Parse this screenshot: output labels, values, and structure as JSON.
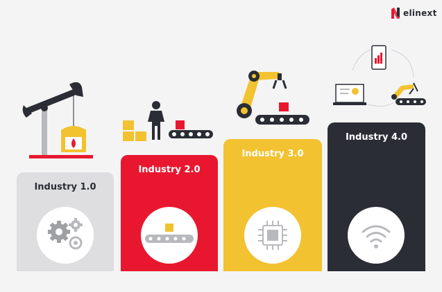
{
  "brand": {
    "name": "elinext",
    "accent": "#e8172f"
  },
  "columns": [
    {
      "label": "Industry 1.0",
      "bg": "#dedee0",
      "text": "#2b2d35",
      "icon": "gears-icon"
    },
    {
      "label": "Industry 2.0",
      "bg": "#e8172f",
      "text": "#ffffff",
      "icon": "conveyor-icon"
    },
    {
      "label": "Industry 3.0",
      "bg": "#f2c230",
      "text": "#ffffff",
      "icon": "chip-icon"
    },
    {
      "label": "Industry 4.0",
      "bg": "#2b2d35",
      "text": "#ffffff",
      "icon": "wifi-icon"
    }
  ]
}
